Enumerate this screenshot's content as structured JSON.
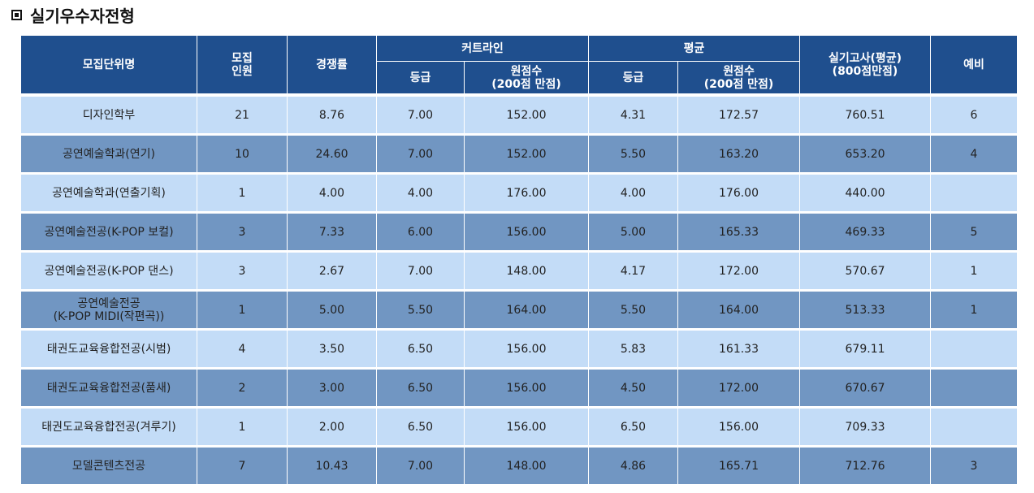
{
  "title": "실기우수자전형",
  "header": {
    "unit": "모집단위명",
    "quota": "모집\n인원",
    "competition": "경쟁률",
    "cutline": "커트라인",
    "average": "평균",
    "grade": "등급",
    "raw_score": "원점수\n(200점 만점)",
    "practical": "실기고사(평균)\n(800점만점)",
    "reserve": "예비"
  },
  "rows": [
    {
      "unit": "디자인학부",
      "quota": "21",
      "competition": "8.76",
      "cut_grade": "7.00",
      "cut_raw": "152.00",
      "avg_grade": "4.31",
      "avg_raw": "172.57",
      "practical": "760.51",
      "reserve": "6"
    },
    {
      "unit": "공연예술학과(연기)",
      "quota": "10",
      "competition": "24.60",
      "cut_grade": "7.00",
      "cut_raw": "152.00",
      "avg_grade": "5.50",
      "avg_raw": "163.20",
      "practical": "653.20",
      "reserve": "4"
    },
    {
      "unit": "공연예술학과(연출기획)",
      "quota": "1",
      "competition": "4.00",
      "cut_grade": "4.00",
      "cut_raw": "176.00",
      "avg_grade": "4.00",
      "avg_raw": "176.00",
      "practical": "440.00",
      "reserve": ""
    },
    {
      "unit": "공연예술전공(K-POP 보컬)",
      "quota": "3",
      "competition": "7.33",
      "cut_grade": "6.00",
      "cut_raw": "156.00",
      "avg_grade": "5.00",
      "avg_raw": "165.33",
      "practical": "469.33",
      "reserve": "5"
    },
    {
      "unit": "공연예술전공(K-POP 댄스)",
      "quota": "3",
      "competition": "2.67",
      "cut_grade": "7.00",
      "cut_raw": "148.00",
      "avg_grade": "4.17",
      "avg_raw": "172.00",
      "practical": "570.67",
      "reserve": "1"
    },
    {
      "unit": "공연예술전공\n(K-POP MIDI(작편곡))",
      "quota": "1",
      "competition": "5.00",
      "cut_grade": "5.50",
      "cut_raw": "164.00",
      "avg_grade": "5.50",
      "avg_raw": "164.00",
      "practical": "513.33",
      "reserve": "1"
    },
    {
      "unit": "태권도교육융합전공(시범)",
      "quota": "4",
      "competition": "3.50",
      "cut_grade": "6.50",
      "cut_raw": "156.00",
      "avg_grade": "5.83",
      "avg_raw": "161.33",
      "practical": "679.11",
      "reserve": ""
    },
    {
      "unit": "태권도교육융합전공(품새)",
      "quota": "2",
      "competition": "3.00",
      "cut_grade": "6.50",
      "cut_raw": "156.00",
      "avg_grade": "4.50",
      "avg_raw": "172.00",
      "practical": "670.67",
      "reserve": ""
    },
    {
      "unit": "태권도교육융합전공(겨루기)",
      "quota": "1",
      "competition": "2.00",
      "cut_grade": "6.50",
      "cut_raw": "156.00",
      "avg_grade": "6.50",
      "avg_raw": "156.00",
      "practical": "709.33",
      "reserve": ""
    },
    {
      "unit": "모델콘텐츠전공",
      "quota": "7",
      "competition": "10.43",
      "cut_grade": "7.00",
      "cut_raw": "148.00",
      "avg_grade": "4.86",
      "avg_raw": "165.71",
      "practical": "712.76",
      "reserve": "3"
    }
  ]
}
